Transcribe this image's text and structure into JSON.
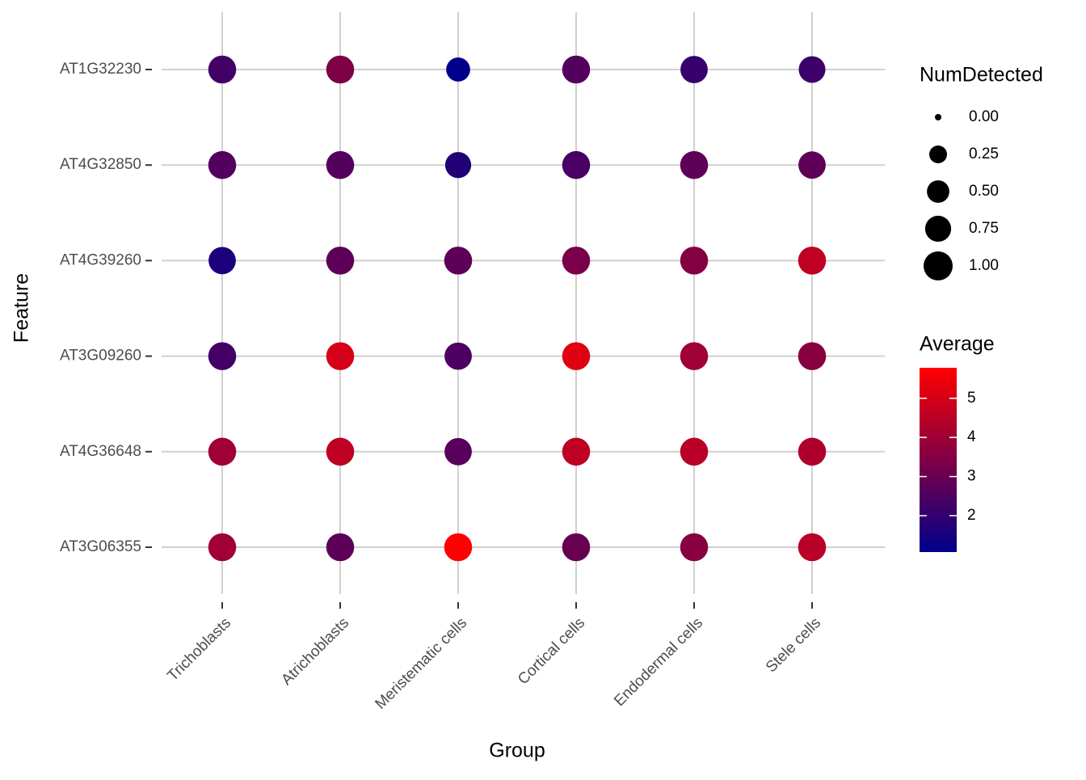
{
  "chart_data": {
    "type": "dot",
    "x_label": "Group",
    "y_label": "Feature",
    "categories": [
      "Trichoblasts",
      "Atrichoblasts",
      "Meristematic cells",
      "Cortical cells",
      "Endodermal cells",
      "Stele cells"
    ],
    "features": [
      "AT1G32230",
      "AT4G32850",
      "AT4G39260",
      "AT3G09260",
      "AT4G36648",
      "AT3G06355"
    ],
    "values": [
      [
        2.3,
        3.4,
        1.07,
        2.6,
        2.1,
        2.2
      ],
      [
        2.6,
        2.6,
        1.7,
        2.4,
        2.8,
        2.8
      ],
      [
        1.6,
        2.8,
        2.8,
        3.3,
        3.5,
        4.6
      ],
      [
        2.3,
        5.0,
        2.5,
        5.2,
        4.0,
        3.6
      ],
      [
        4.0,
        4.6,
        2.7,
        4.6,
        4.5,
        4.3
      ],
      [
        4.0,
        2.8,
        5.78,
        3.0,
        3.6,
        4.5
      ]
    ],
    "sizes": [
      [
        0.9,
        0.9,
        0.6,
        0.9,
        0.85,
        0.8
      ],
      [
        0.9,
        0.9,
        0.75,
        0.9,
        0.9,
        0.85
      ],
      [
        0.85,
        0.9,
        0.9,
        0.9,
        0.9,
        0.9
      ],
      [
        0.9,
        0.9,
        0.85,
        0.9,
        0.9,
        0.9
      ],
      [
        0.9,
        0.9,
        0.85,
        0.9,
        0.9,
        0.9
      ],
      [
        0.9,
        0.9,
        0.9,
        0.9,
        0.9,
        0.9
      ]
    ],
    "size_legend_title": "NumDetected",
    "size_ticks": [
      {
        "value": 0,
        "label": "0.00"
      },
      {
        "value": 0.25,
        "label": "0.25"
      },
      {
        "value": 0.5,
        "label": "0.50"
      },
      {
        "value": 0.75,
        "label": "0.75"
      },
      {
        "value": 1,
        "label": "1.00"
      }
    ],
    "color_legend_title": "Average",
    "clim": [
      1.07,
      5.78
    ],
    "cticks": [
      2,
      3,
      4,
      5
    ],
    "low_color": "#00008b",
    "high_color": "#ff0000",
    "grid": true
  }
}
